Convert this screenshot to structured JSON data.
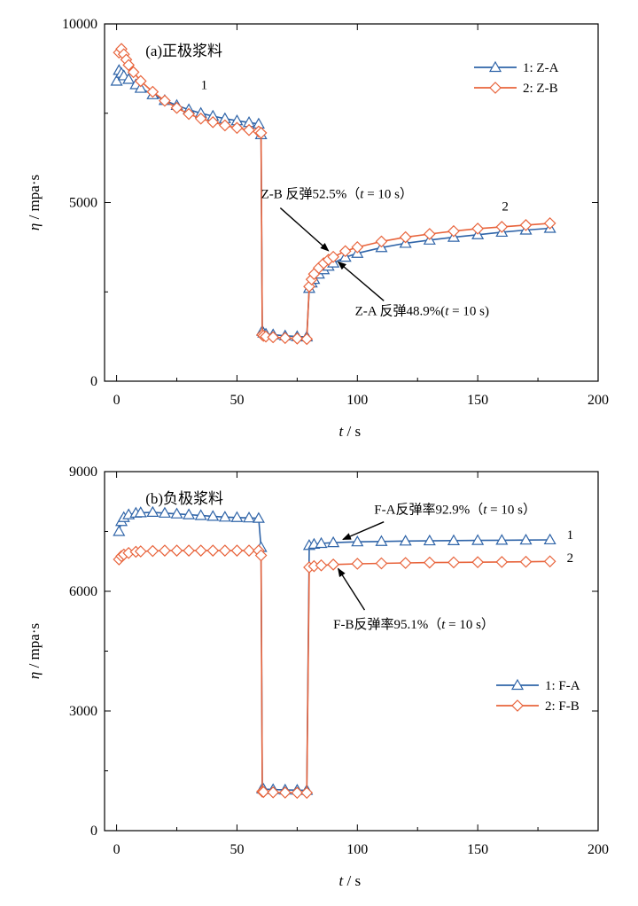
{
  "colors": {
    "series_a": "#2f64a8",
    "series_b": "#e8643c",
    "axis": "#000000"
  },
  "chart_data": [
    {
      "type": "line",
      "title": "(a)正极浆料",
      "xlabel_italic": "t",
      "xlabel_unit": " / s",
      "ylabel_italic": "η",
      "ylabel_unit": " / mpa·s",
      "xlim": [
        -5,
        200
      ],
      "ylim": [
        0,
        10000
      ],
      "xticks": [
        0,
        50,
        100,
        150,
        200
      ],
      "xtick_labels": [
        "0",
        "50",
        "100",
        "150",
        "200"
      ],
      "yticks": [
        0,
        5000,
        10000
      ],
      "ytick_labels": [
        "0",
        "5000",
        "10000"
      ],
      "legend_position": "top-right",
      "series": [
        {
          "name": "1: Z-A",
          "marker": "triangle",
          "color_key": "series_a",
          "points": [
            [
              0,
              8400
            ],
            [
              1,
              8700
            ],
            [
              2,
              8620
            ],
            [
              3,
              8550
            ],
            [
              5,
              8450
            ],
            [
              8,
              8300
            ],
            [
              10,
              8200
            ],
            [
              15,
              8020
            ],
            [
              20,
              7860
            ],
            [
              25,
              7720
            ],
            [
              30,
              7600
            ],
            [
              35,
              7500
            ],
            [
              40,
              7420
            ],
            [
              45,
              7350
            ],
            [
              50,
              7290
            ],
            [
              55,
              7240
            ],
            [
              59,
              7200
            ],
            [
              60,
              6900
            ],
            [
              60.5,
              1400
            ],
            [
              61,
              1350
            ],
            [
              62,
              1320
            ],
            [
              65,
              1300
            ],
            [
              70,
              1270
            ],
            [
              75,
              1250
            ],
            [
              79,
              1240
            ],
            [
              80,
              2600
            ],
            [
              81,
              2750
            ],
            [
              82,
              2850
            ],
            [
              84,
              3000
            ],
            [
              86,
              3120
            ],
            [
              88,
              3220
            ],
            [
              90,
              3310
            ],
            [
              95,
              3470
            ],
            [
              100,
              3580
            ],
            [
              110,
              3740
            ],
            [
              120,
              3860
            ],
            [
              130,
              3950
            ],
            [
              140,
              4030
            ],
            [
              150,
              4100
            ],
            [
              160,
              4170
            ],
            [
              170,
              4230
            ],
            [
              180,
              4280
            ]
          ]
        },
        {
          "name": "2: Z-B",
          "marker": "diamond",
          "color_key": "series_b",
          "points": [
            [
              1,
              9200
            ],
            [
              2,
              9300
            ],
            [
              3,
              9150
            ],
            [
              4,
              9000
            ],
            [
              5,
              8850
            ],
            [
              7,
              8650
            ],
            [
              10,
              8400
            ],
            [
              15,
              8100
            ],
            [
              20,
              7850
            ],
            [
              25,
              7650
            ],
            [
              30,
              7480
            ],
            [
              35,
              7350
            ],
            [
              40,
              7250
            ],
            [
              45,
              7160
            ],
            [
              50,
              7090
            ],
            [
              55,
              7030
            ],
            [
              59,
              6990
            ],
            [
              60,
              6950
            ],
            [
              60.5,
              1300
            ],
            [
              61,
              1270
            ],
            [
              62,
              1250
            ],
            [
              65,
              1230
            ],
            [
              70,
              1210
            ],
            [
              75,
              1195
            ],
            [
              79,
              1180
            ],
            [
              80,
              2650
            ],
            [
              81,
              2850
            ],
            [
              82,
              3000
            ],
            [
              84,
              3170
            ],
            [
              86,
              3300
            ],
            [
              88,
              3400
            ],
            [
              90,
              3480
            ],
            [
              95,
              3640
            ],
            [
              100,
              3750
            ],
            [
              110,
              3910
            ],
            [
              120,
              4030
            ],
            [
              130,
              4120
            ],
            [
              140,
              4200
            ],
            [
              150,
              4270
            ],
            [
              160,
              4320
            ],
            [
              170,
              4370
            ],
            [
              180,
              4420
            ]
          ]
        }
      ],
      "curve_labels": [
        {
          "text": "1",
          "x": 35,
          "y": 8180
        },
        {
          "text": "2",
          "x": 160,
          "y": 4780
        }
      ],
      "annotations": [
        {
          "text_before": "Z-B 反弹52.5%（",
          "italic": "t",
          "text_after": " = 10 s）",
          "text_x": 60,
          "text_y": 5130,
          "arrow_from": [
            68,
            4850
          ],
          "arrow_to": [
            88,
            3650
          ]
        },
        {
          "text_before": "Z-A 反弹48.9%(",
          "italic": "t",
          "text_after": " = 10 s)",
          "text_x": 99,
          "text_y": 1850,
          "arrow_from": [
            111,
            2250
          ],
          "arrow_to": [
            92,
            3340
          ]
        }
      ]
    },
    {
      "type": "line",
      "title": "(b)负极浆料",
      "xlabel_italic": "t",
      "xlabel_unit": " / s",
      "ylabel_italic": "η",
      "ylabel_unit": " / mpa·s",
      "xlim": [
        -5,
        200
      ],
      "ylim": [
        0,
        9000
      ],
      "xticks": [
        0,
        50,
        100,
        150,
        200
      ],
      "xtick_labels": [
        "0",
        "50",
        "100",
        "150",
        "200"
      ],
      "yticks": [
        0,
        3000,
        6000,
        9000
      ],
      "ytick_labels": [
        "0",
        "3000",
        "6000",
        "9000"
      ],
      "legend_position": "right",
      "series": [
        {
          "name": "1: F-A",
          "marker": "triangle",
          "color_key": "series_a",
          "points": [
            [
              1,
              7500
            ],
            [
              2,
              7750
            ],
            [
              3,
              7850
            ],
            [
              5,
              7920
            ],
            [
              8,
              7960
            ],
            [
              10,
              7970
            ],
            [
              15,
              7980
            ],
            [
              20,
              7960
            ],
            [
              25,
              7940
            ],
            [
              30,
              7920
            ],
            [
              35,
              7900
            ],
            [
              40,
              7880
            ],
            [
              45,
              7860
            ],
            [
              50,
              7850
            ],
            [
              55,
              7840
            ],
            [
              59,
              7830
            ],
            [
              60,
              7100
            ],
            [
              60.5,
              1050
            ],
            [
              61,
              1040
            ],
            [
              65,
              1030
            ],
            [
              70,
              1020
            ],
            [
              75,
              1015
            ],
            [
              79,
              1010
            ],
            [
              80,
              7150
            ],
            [
              82,
              7180
            ],
            [
              85,
              7200
            ],
            [
              90,
              7220
            ],
            [
              100,
              7240
            ],
            [
              110,
              7250
            ],
            [
              120,
              7260
            ],
            [
              130,
              7265
            ],
            [
              140,
              7270
            ],
            [
              150,
              7275
            ],
            [
              160,
              7280
            ],
            [
              170,
              7285
            ],
            [
              180,
              7290
            ]
          ]
        },
        {
          "name": "2: F-B",
          "marker": "diamond",
          "color_key": "series_b",
          "points": [
            [
              1,
              6800
            ],
            [
              2,
              6880
            ],
            [
              3,
              6920
            ],
            [
              5,
              6960
            ],
            [
              8,
              6990
            ],
            [
              10,
              7000
            ],
            [
              15,
              7010
            ],
            [
              20,
              7020
            ],
            [
              25,
              7020
            ],
            [
              30,
              7020
            ],
            [
              35,
              7020
            ],
            [
              40,
              7020
            ],
            [
              45,
              7020
            ],
            [
              50,
              7020
            ],
            [
              55,
              7020
            ],
            [
              59,
              7020
            ],
            [
              60,
              6900
            ],
            [
              60.5,
              980
            ],
            [
              61,
              970
            ],
            [
              65,
              960
            ],
            [
              70,
              955
            ],
            [
              75,
              950
            ],
            [
              79,
              950
            ],
            [
              80,
              6600
            ],
            [
              82,
              6630
            ],
            [
              85,
              6650
            ],
            [
              90,
              6670
            ],
            [
              100,
              6690
            ],
            [
              110,
              6700
            ],
            [
              120,
              6710
            ],
            [
              130,
              6720
            ],
            [
              140,
              6725
            ],
            [
              150,
              6730
            ],
            [
              160,
              6735
            ],
            [
              170,
              6740
            ],
            [
              180,
              6750
            ]
          ]
        }
      ],
      "curve_labels": [
        {
          "text": "1",
          "x": 187,
          "y": 7310
        },
        {
          "text": "2",
          "x": 187,
          "y": 6730
        }
      ],
      "annotations": [
        {
          "text_before": "F-A反弹率92.9%（",
          "italic": "t",
          "text_after": " = 10 s）",
          "text_x": 107,
          "text_y": 7950,
          "arrow_from": [
            111,
            7740
          ],
          "arrow_to": [
            94,
            7300
          ]
        },
        {
          "text_before": "F-B反弹率95.1%（",
          "italic": "t",
          "text_after": " = 10 s）",
          "text_x": 90,
          "text_y": 5070,
          "arrow_from": [
            103,
            5530
          ],
          "arrow_to": [
            92,
            6570
          ]
        }
      ]
    }
  ]
}
